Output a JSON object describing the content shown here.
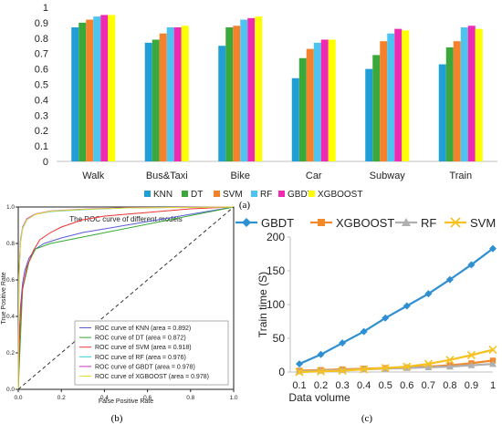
{
  "panel_labels": {
    "a": "(a)",
    "b": "(b)",
    "c": "(c)"
  },
  "chart_data": [
    {
      "type": "bar",
      "categories": [
        "Walk",
        "Bus&Taxi",
        "Bike",
        "Car",
        "Subway",
        "Train"
      ],
      "ylim": [
        0,
        1
      ],
      "yticks": [
        "0",
        "0.1",
        "0.2",
        "0.3",
        "0.4",
        "0.5",
        "0.6",
        "0.7",
        "0.8",
        "0.9",
        "1"
      ],
      "grid": false,
      "legend": "bottom",
      "series": [
        {
          "name": "KNN",
          "color": "#1f9fd5",
          "values": [
            0.87,
            0.77,
            0.75,
            0.54,
            0.6,
            0.63
          ]
        },
        {
          "name": "DT",
          "color": "#3aa83a",
          "values": [
            0.9,
            0.79,
            0.87,
            0.67,
            0.69,
            0.74
          ]
        },
        {
          "name": "SVM",
          "color": "#f5822b",
          "values": [
            0.92,
            0.83,
            0.88,
            0.73,
            0.78,
            0.78
          ]
        },
        {
          "name": "RF",
          "color": "#4fc3f0",
          "values": [
            0.94,
            0.87,
            0.92,
            0.77,
            0.83,
            0.87
          ]
        },
        {
          "name": "GBDT",
          "color": "#ee2ab0",
          "values": [
            0.95,
            0.87,
            0.93,
            0.79,
            0.86,
            0.88
          ]
        },
        {
          "name": "XGBOOST",
          "color": "#ffff00",
          "values": [
            0.95,
            0.88,
            0.94,
            0.79,
            0.85,
            0.86
          ]
        }
      ]
    },
    {
      "type": "line",
      "title": "The ROC curve of different models",
      "xlabel": "False Positive Rate",
      "ylabel": "True Positive Rate",
      "xlim": [
        0,
        1
      ],
      "ylim": [
        0,
        1
      ],
      "xticks": [
        "0.0",
        "0.2",
        "0.4",
        "0.6",
        "0.8",
        "1.0"
      ],
      "yticks": [
        "0.0",
        "0.2",
        "0.4",
        "0.6",
        "0.8",
        "1.0"
      ],
      "legend": "bottom-right",
      "series": [
        {
          "name": "ROC curve of KNN (area = 0.892)",
          "color": "#5a5ad6",
          "x": [
            0,
            0.005,
            0.01,
            0.02,
            0.03,
            0.05,
            0.08,
            0.12,
            0.2,
            0.3,
            0.5,
            0.7,
            0.9,
            1.0
          ],
          "y": [
            0,
            0.3,
            0.45,
            0.58,
            0.65,
            0.72,
            0.77,
            0.8,
            0.83,
            0.86,
            0.9,
            0.94,
            0.98,
            1.0
          ]
        },
        {
          "name": "ROC curve of DT (area = 0.872)",
          "color": "#33aa33",
          "x": [
            0,
            0.02,
            0.05,
            0.08,
            0.15,
            1.0
          ],
          "y": [
            0,
            0.55,
            0.7,
            0.77,
            0.8,
            1.0
          ]
        },
        {
          "name": "ROC curve of SVM (area = 0.918)",
          "color": "#ee3333",
          "x": [
            0,
            0.005,
            0.01,
            0.02,
            0.04,
            0.07,
            0.1,
            0.15,
            0.2,
            0.3,
            0.4,
            0.6,
            0.8,
            1.0
          ],
          "y": [
            0,
            0.25,
            0.4,
            0.55,
            0.67,
            0.76,
            0.82,
            0.86,
            0.89,
            0.93,
            0.95,
            0.97,
            0.99,
            1.0
          ]
        },
        {
          "name": "ROC curve of RF (area = 0.976)",
          "color": "#33cccc",
          "x": [
            0,
            0.003,
            0.01,
            0.02,
            0.04,
            0.08,
            0.15,
            0.3,
            0.5,
            1.0
          ],
          "y": [
            0,
            0.6,
            0.8,
            0.88,
            0.93,
            0.96,
            0.975,
            0.985,
            0.995,
            1.0
          ]
        },
        {
          "name": "ROC curve of GBDT (area = 0.978)",
          "color": "#cc33cc",
          "x": [
            0,
            0.003,
            0.01,
            0.02,
            0.04,
            0.08,
            0.15,
            0.3,
            0.5,
            1.0
          ],
          "y": [
            0,
            0.62,
            0.82,
            0.89,
            0.935,
            0.962,
            0.978,
            0.988,
            0.996,
            1.0
          ]
        },
        {
          "name": "ROC curve of XGBOOST (area = 0.978)",
          "color": "#dddd33",
          "x": [
            0,
            0.003,
            0.01,
            0.02,
            0.04,
            0.08,
            0.15,
            0.3,
            0.5,
            1.0
          ],
          "y": [
            0,
            0.61,
            0.81,
            0.885,
            0.93,
            0.96,
            0.977,
            0.987,
            0.995,
            1.0
          ]
        },
        {
          "name": "",
          "color": "#333333",
          "dashed": true,
          "x": [
            0,
            1
          ],
          "y": [
            0,
            1
          ]
        }
      ]
    },
    {
      "type": "line",
      "xlabel": "Data volume",
      "ylabel": "Train time (S)",
      "categories": [
        "0.1",
        "0.2",
        "0.3",
        "0.4",
        "0.5",
        "0.6",
        "0.7",
        "0.8",
        "0.9",
        "1"
      ],
      "ylim": [
        0,
        200
      ],
      "yticks": [
        "0",
        "50",
        "100",
        "150",
        "200"
      ],
      "legend": "top",
      "series": [
        {
          "name": "GBDT",
          "color": "#2e8fd2",
          "marker": "diamond",
          "values": [
            12,
            26,
            43,
            60,
            80,
            98,
            116,
            137,
            159,
            183
          ]
        },
        {
          "name": "XGBOOST",
          "color": "#f28a2c",
          "marker": "square",
          "values": [
            2,
            3,
            4,
            5,
            6,
            7,
            8,
            10,
            13,
            17
          ]
        },
        {
          "name": "RF",
          "color": "#b0b0b0",
          "marker": "triangle",
          "values": [
            1,
            2,
            3,
            4,
            5,
            6,
            7,
            8,
            10,
            12
          ]
        },
        {
          "name": "SVM",
          "color": "#f7c11e",
          "marker": "x",
          "values": [
            0,
            1,
            2,
            4,
            6,
            8,
            12,
            18,
            25,
            33
          ]
        }
      ]
    }
  ]
}
